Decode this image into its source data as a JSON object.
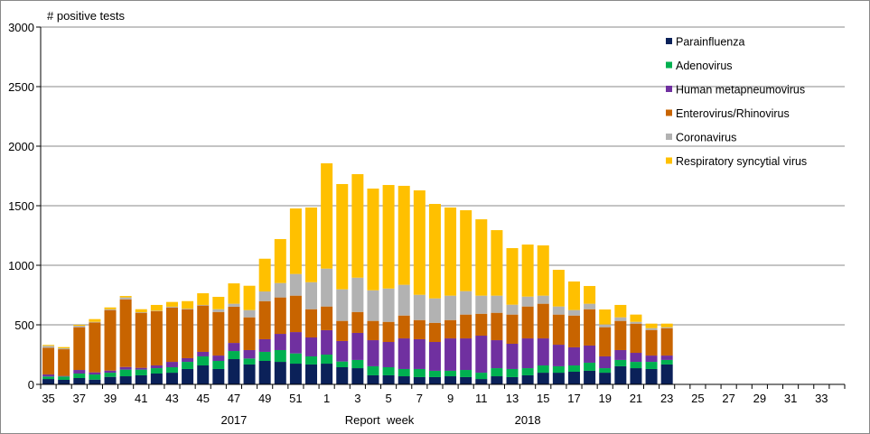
{
  "chart_data": {
    "type": "bar",
    "stacked": true,
    "ylabel": "# positive tests",
    "xlabel": "Report  week",
    "year_labels": [
      {
        "text": "2017",
        "week": "47"
      },
      {
        "text": "2018",
        "week": "14"
      }
    ],
    "ylim": [
      0,
      3000
    ],
    "yticks": [
      0,
      500,
      1000,
      1500,
      2000,
      2500,
      3000
    ],
    "grid": true,
    "legend_position": "top-right",
    "categories": [
      "35",
      "36",
      "37",
      "38",
      "39",
      "40",
      "41",
      "42",
      "43",
      "44",
      "45",
      "46",
      "47",
      "48",
      "49",
      "50",
      "51",
      "52",
      "1",
      "2",
      "3",
      "4",
      "5",
      "6",
      "7",
      "8",
      "9",
      "10",
      "11",
      "12",
      "13",
      "14",
      "15",
      "16",
      "17",
      "18",
      "19",
      "20",
      "21",
      "22",
      "23",
      "24",
      "25",
      "26",
      "27",
      "28",
      "29",
      "30",
      "31",
      "32",
      "33",
      "34"
    ],
    "xtick_labels": [
      "35",
      "37",
      "39",
      "41",
      "43",
      "45",
      "47",
      "49",
      "51",
      "1",
      "3",
      "5",
      "7",
      "9",
      "11",
      "13",
      "15",
      "17",
      "19",
      "21",
      "23",
      "25",
      "27",
      "29",
      "31",
      "33"
    ],
    "series": [
      {
        "name": "Parainfluenza",
        "color": "#0b2159",
        "values": [
          45,
          38,
          53,
          40,
          63,
          68,
          76,
          91,
          98,
          129,
          159,
          129,
          212,
          167,
          197,
          189,
          174,
          167,
          174,
          144,
          136,
          76,
          76,
          68,
          61,
          61,
          68,
          61,
          45,
          68,
          61,
          76,
          98,
          98,
          106,
          114,
          98,
          152,
          136,
          129,
          167,
          null,
          null,
          null,
          null,
          null,
          null,
          null,
          null,
          null,
          null,
          null
        ]
      },
      {
        "name": "Adenovirus",
        "color": "#00b050",
        "values": [
          21,
          28,
          38,
          43,
          35,
          56,
          48,
          45,
          46,
          60,
          76,
          68,
          68,
          50,
          76,
          99,
          86,
          68,
          76,
          48,
          69,
          76,
          68,
          61,
          68,
          53,
          46,
          60,
          53,
          68,
          68,
          60,
          61,
          54,
          53,
          68,
          38,
          53,
          53,
          60,
          38,
          null,
          null,
          null,
          null,
          null,
          null,
          null,
          null,
          null,
          null,
          null
        ]
      },
      {
        "name": "Human metapneumovirus",
        "color": "#7030a0",
        "values": [
          17,
          5,
          30,
          18,
          18,
          22,
          15,
          23,
          45,
          31,
          38,
          45,
          68,
          71,
          106,
          136,
          179,
          159,
          205,
          172,
          227,
          219,
          212,
          257,
          250,
          242,
          272,
          265,
          311,
          235,
          212,
          250,
          227,
          181,
          152,
          144,
          99,
          83,
          76,
          53,
          37,
          null,
          null,
          null,
          null,
          null,
          null,
          null,
          null,
          null,
          null,
          null
        ]
      },
      {
        "name": "Enterovirus/Rhinovirus",
        "color": "#c86400",
        "values": [
          225,
          224,
          359,
          419,
          508,
          568,
          462,
          457,
          457,
          411,
          389,
          366,
          304,
          275,
          320,
          306,
          306,
          237,
          199,
          169,
          176,
          162,
          169,
          192,
          161,
          161,
          154,
          200,
          184,
          230,
          245,
          268,
          291,
          253,
          267,
          305,
          245,
          245,
          245,
          215,
          230,
          null,
          null,
          null,
          null,
          null,
          null,
          null,
          null,
          null,
          null,
          null
        ]
      },
      {
        "name": "Coronavirus",
        "color": "#b2b2b2",
        "values": [
          15,
          8,
          12,
          5,
          7,
          16,
          5,
          3,
          6,
          5,
          5,
          23,
          25,
          61,
          81,
          121,
          182,
          227,
          318,
          265,
          288,
          257,
          280,
          258,
          212,
          205,
          205,
          197,
          152,
          144,
          83,
          83,
          68,
          68,
          46,
          46,
          23,
          30,
          15,
          15,
          8,
          null,
          null,
          null,
          null,
          null,
          null,
          null,
          null,
          null,
          null,
          null
        ]
      },
      {
        "name": "Respiratory syncytial virus",
        "color": "#ffc000",
        "values": [
          8,
          10,
          8,
          23,
          15,
          12,
          25,
          48,
          40,
          63,
          98,
          104,
          171,
          204,
          275,
          369,
          550,
          627,
          884,
          884,
          869,
          854,
          869,
          831,
          877,
          793,
          740,
          679,
          641,
          550,
          475,
          437,
          422,
          308,
          240,
          149,
          126,
          104,
          61,
          38,
          30,
          null,
          null,
          null,
          null,
          null,
          null,
          null,
          null,
          null,
          null,
          null
        ]
      }
    ]
  }
}
